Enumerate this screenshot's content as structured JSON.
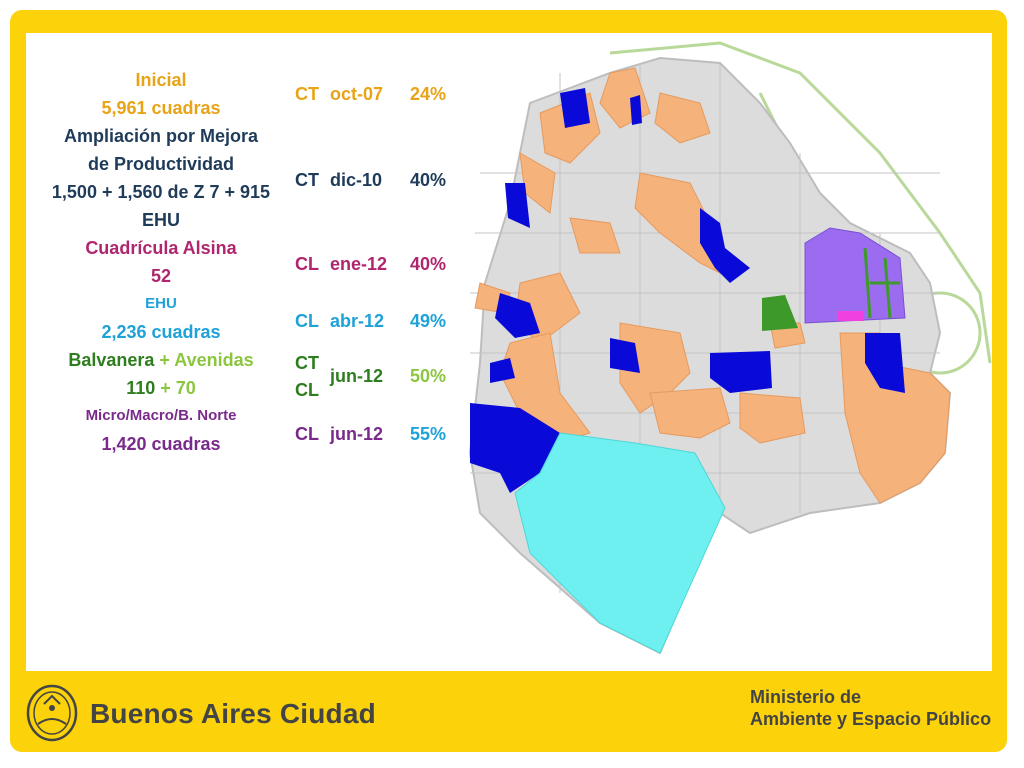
{
  "legend": [
    {
      "parts": [
        {
          "text": "Inicial",
          "color": "#e8a317"
        }
      ]
    },
    {
      "parts": [
        {
          "text": "5,961 cuadras",
          "color": "#e8a317"
        }
      ]
    },
    {
      "parts": [
        {
          "text": "Ampliación por Mejora",
          "color": "#1f3b5a"
        }
      ]
    },
    {
      "parts": [
        {
          "text": "de Productividad",
          "color": "#1f3b5a"
        }
      ]
    },
    {
      "parts": [
        {
          "text": "1,500 + 1,560 de Z 7 + 915",
          "color": "#1f3b5a"
        }
      ]
    },
    {
      "parts": [
        {
          "text": "EHU",
          "color": "#1f3b5a"
        }
      ]
    },
    {
      "parts": [
        {
          "text": "Cuadrícula Alsina",
          "color": "#b0266e"
        }
      ]
    },
    {
      "parts": [
        {
          "text": "52",
          "color": "#b0266e"
        }
      ]
    },
    {
      "small": true,
      "parts": [
        {
          "text": "EHU",
          "color": "#1ea2d8"
        }
      ]
    },
    {
      "parts": [
        {
          "text": "2,236 cuadras",
          "color": "#1ea2d8"
        }
      ]
    },
    {
      "parts": [
        {
          "text": "Balvanera",
          "color": "#2e7d1e"
        },
        {
          "text": " + Avenidas",
          "color": "#8cc63f"
        }
      ]
    },
    {
      "parts": [
        {
          "text": "110",
          "color": "#2e7d1e"
        },
        {
          "text": " + 70",
          "color": "#8cc63f"
        }
      ]
    },
    {
      "small": true,
      "parts": [
        {
          "text": "Micro/Macro/B. Norte",
          "color": "#7a2a8a"
        }
      ]
    },
    {
      "parts": [
        {
          "text": "1,420 cuadras",
          "color": "#7a2a8a"
        }
      ]
    }
  ],
  "rows": [
    {
      "type": "CT",
      "type2": "",
      "date": "oct-07",
      "pct": "24%",
      "color": "#e8a317"
    },
    {
      "type": "CT",
      "type2": "",
      "date": "dic-10",
      "pct": "40%",
      "color": "#1f3b5a"
    },
    {
      "type": "CL",
      "type2": "",
      "date": "ene-12",
      "pct": "40%",
      "color": "#b0266e"
    },
    {
      "type": "CL",
      "type2": "",
      "date": "abr-12",
      "pct": "49%",
      "color": "#1ea2d8"
    },
    {
      "type": "CT",
      "type2": "CL",
      "date": "jun-12",
      "pct": "50%",
      "color": "#2e7d1e",
      "pct_color": "#8cc63f"
    },
    {
      "type": "CL",
      "type2": "",
      "date": "jun-12",
      "pct": "55%",
      "color": "#7a2a8a",
      "pct_color": "#1ea2d8"
    }
  ],
  "footer": {
    "brand": "Buenos Aires Ciudad",
    "ministry_line1": "Ministerio de",
    "ministry_line2": "Ambiente y Espacio Público"
  },
  "colors": {
    "frame": "#fcd20a",
    "orange_zone": "#f5b27a",
    "blue_zone": "#0a0ad8",
    "cyan_zone": "#6ef0f0",
    "purple_zone": "#9b6cf0",
    "green_zone": "#3d9a2a",
    "magenta_zone": "#f040e0",
    "city_base": "#dcdcdc"
  }
}
